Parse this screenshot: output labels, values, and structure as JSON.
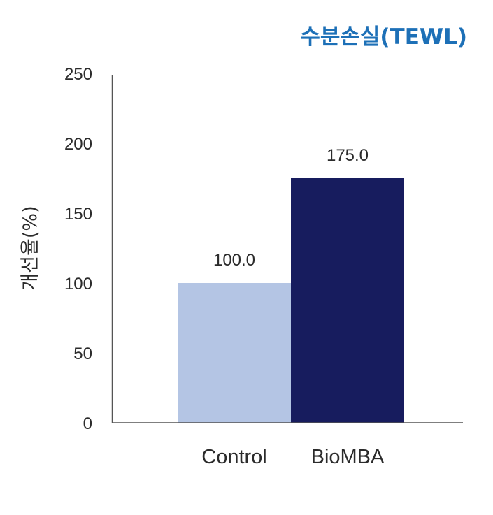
{
  "chart_data": {
    "type": "bar",
    "title": "수분손실(TEWL)",
    "xlabel": "",
    "ylabel": "개선율(%)",
    "ylim": [
      0,
      250
    ],
    "yticks": [
      0,
      50,
      100,
      150,
      200,
      250
    ],
    "categories": [
      "Control",
      "BioMBA"
    ],
    "values": [
      100.0,
      175.0
    ],
    "value_labels": [
      "100.0",
      "175.0"
    ],
    "colors": [
      "#b4c5e4",
      "#171c5e"
    ],
    "grid": false,
    "legend": "none"
  }
}
